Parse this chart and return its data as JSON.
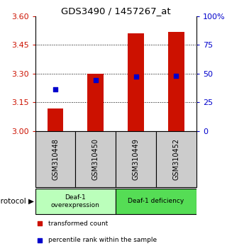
{
  "title": "GDS3490 / 1457267_at",
  "samples": [
    "GSM310448",
    "GSM310450",
    "GSM310449",
    "GSM310452"
  ],
  "bar_tops": [
    3.12,
    3.3,
    3.51,
    3.52
  ],
  "bar_bottom": 3.0,
  "blue_y": [
    3.22,
    3.265,
    3.285,
    3.29
  ],
  "ylim_left": [
    3.0,
    3.6
  ],
  "ylim_right": [
    0,
    100
  ],
  "yticks_left": [
    3.0,
    3.15,
    3.3,
    3.45,
    3.6
  ],
  "yticks_right": [
    0,
    25,
    50,
    75,
    100
  ],
  "bar_color": "#cc1100",
  "blue_color": "#0000cc",
  "groups": [
    {
      "label": "Deaf-1\noverexpression",
      "indices": [
        0,
        1
      ],
      "color": "#bbffbb"
    },
    {
      "label": "Deaf-1 deficiency",
      "indices": [
        2,
        3
      ],
      "color": "#55dd55"
    }
  ],
  "protocol_label": "protocol",
  "legend_items": [
    {
      "color": "#cc1100",
      "label": "transformed count"
    },
    {
      "color": "#0000cc",
      "label": "percentile rank within the sample"
    }
  ],
  "sample_box_color": "#cccccc",
  "bg_color": "#ffffff",
  "tick_color_left": "#cc1100",
  "tick_color_right": "#0000cc",
  "bar_width": 0.4
}
